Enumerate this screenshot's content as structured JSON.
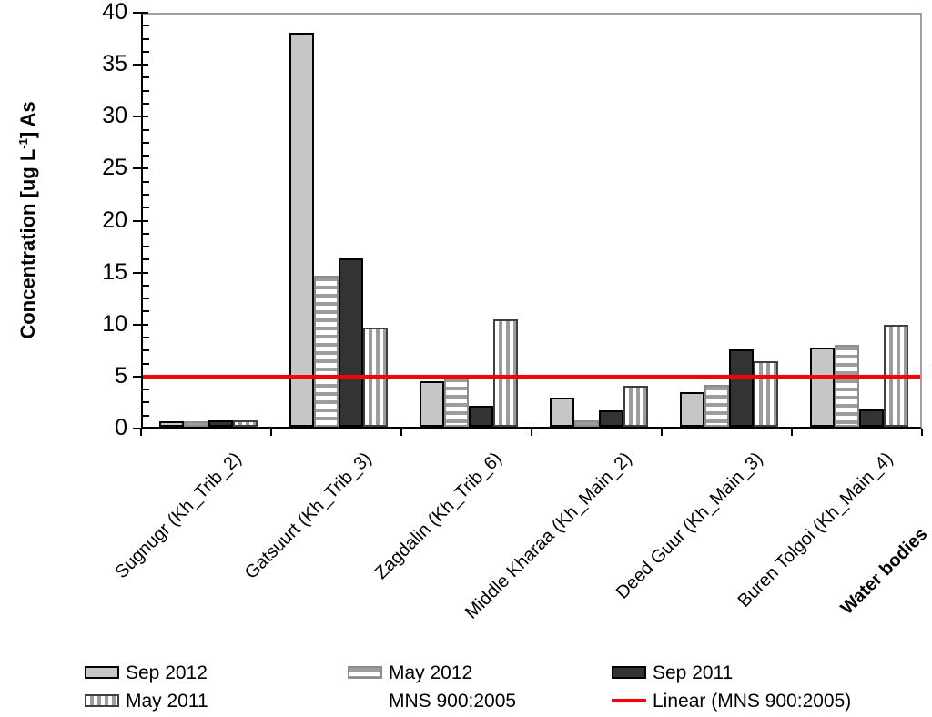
{
  "chart_data": {
    "type": "bar",
    "title": "",
    "ylabel": {
      "pre": "Concentration [ug L",
      "sup": "-1",
      "post": "] As"
    },
    "xlabel": "Water bodies",
    "ylim": [
      0,
      40
    ],
    "ytick_major": 5,
    "ytick_minor": 1.25,
    "grid": false,
    "legend_position": "bottom",
    "categories": [
      "Sugnugr (Kh_Trib_2)",
      "Gatsuurt (Kh_Trib_3)",
      "Zagdalin (Kh_Trib_6)",
      "Middle Kharaa (Kh_Main_2)",
      "Deed Guur (Kh_Main_3)",
      "Buren Tolgoi (Kh_Main_4)"
    ],
    "series": [
      {
        "name": "Sep 2012",
        "pattern": "solid-light",
        "values": [
          0.5,
          37.9,
          4.4,
          2.8,
          3.3,
          7.6
        ]
      },
      {
        "name": "May 2012",
        "pattern": "hstripe",
        "values": [
          0.5,
          14.5,
          4.8,
          0.6,
          4.0,
          7.9
        ]
      },
      {
        "name": "Sep 2011",
        "pattern": "solid-dark",
        "values": [
          0.6,
          16.2,
          2.0,
          1.6,
          7.4,
          1.7
        ]
      },
      {
        "name": "May 2011",
        "pattern": "vstripe",
        "values": [
          0.65,
          9.5,
          10.3,
          3.9,
          6.3,
          9.8
        ]
      }
    ],
    "reference_line": {
      "label": "MNS 900:2005",
      "value": 5,
      "color": "#ff0000"
    },
    "legend": [
      {
        "label": "Sep 2012",
        "swatch": "solid-light"
      },
      {
        "label": "May 2012",
        "swatch": "hstripe"
      },
      {
        "label": "Sep 2011",
        "swatch": "solid-dark"
      },
      {
        "label": "May 2011",
        "swatch": "vstripe"
      },
      {
        "label": "MNS 900:2005",
        "swatch": "none"
      },
      {
        "label": "Linear (MNS 900:2005)",
        "swatch": "red-line"
      }
    ],
    "colors": {
      "bar_light": "#c6c6c6",
      "bar_dark": "#333333",
      "stripe_gray": "#9c9c9c",
      "frame_gray": "#a0a0a0",
      "reference": "#ff0000"
    }
  }
}
